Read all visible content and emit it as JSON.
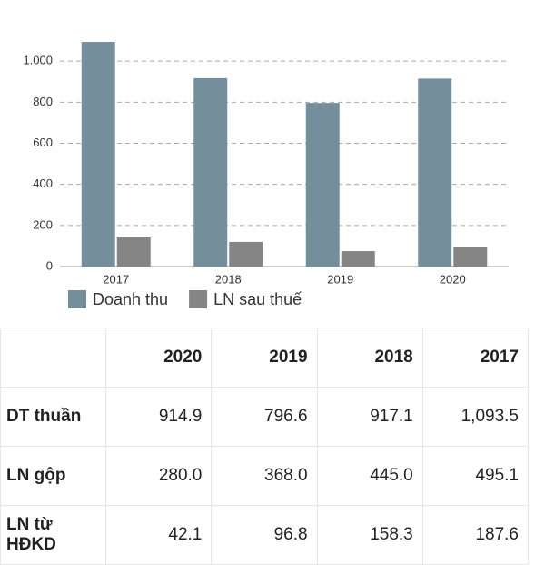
{
  "chart_data": {
    "type": "bar",
    "categories": [
      "2017",
      "2018",
      "2019",
      "2020"
    ],
    "series": [
      {
        "name": "Doanh thu",
        "color": "#748f9b",
        "values": [
          1093.5,
          917.1,
          796.6,
          914.9
        ]
      },
      {
        "name": "LN sau thuế",
        "color": "#858585",
        "values": [
          142,
          120,
          75,
          93
        ]
      }
    ],
    "ylim": [
      0,
      1200
    ],
    "yticks": [
      0,
      200,
      400,
      600,
      800,
      {
        "value": 1000,
        "label": "1.000"
      }
    ],
    "grid": true,
    "legend": "bottom"
  },
  "table": {
    "columns": [
      "2020",
      "2019",
      "2018",
      "2017"
    ],
    "rows": [
      {
        "label": "DT thuần",
        "values": [
          "914.9",
          "796.6",
          "917.1",
          "1,093.5"
        ]
      },
      {
        "label": "LN gộp",
        "values": [
          "280.0",
          "368.0",
          "445.0",
          "495.1"
        ]
      },
      {
        "label": "LN từ HĐKD",
        "values": [
          "42.1",
          "96.8",
          "158.3",
          "187.6"
        ]
      }
    ]
  }
}
